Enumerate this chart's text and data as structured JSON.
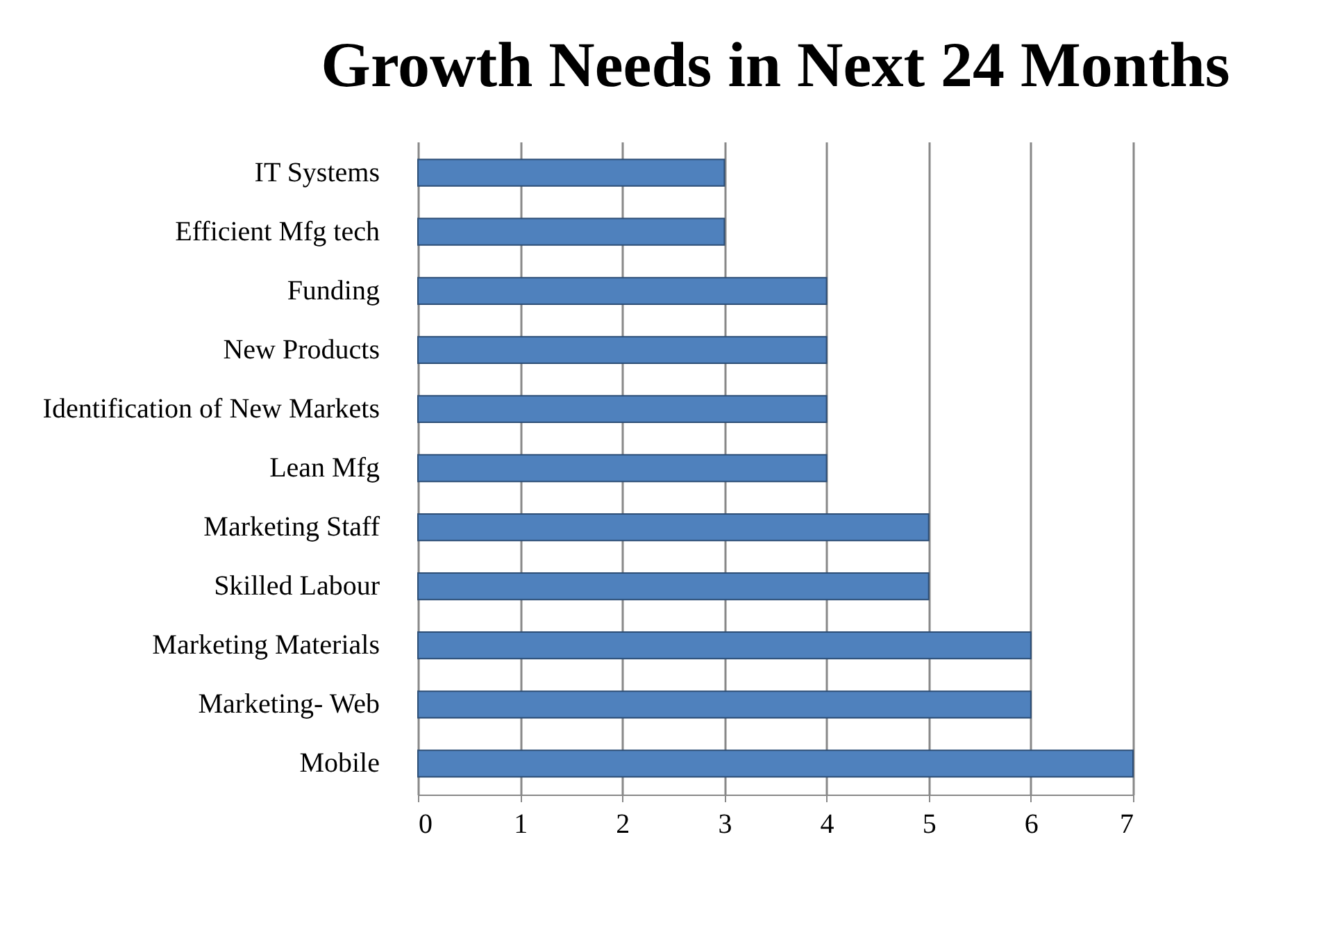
{
  "chart_data": {
    "type": "bar",
    "orientation": "horizontal",
    "title": "Growth  Needs in Next 24 Months",
    "categories": [
      "IT Systems",
      "Efficient Mfg tech",
      "Funding",
      "New Products",
      "Identification of New Markets",
      "Lean Mfg",
      "Marketing Staff",
      "Skilled Labour",
      "Marketing Materials",
      "Marketing- Web",
      "Mobile"
    ],
    "values": [
      3,
      3,
      4,
      4,
      4,
      4,
      5,
      5,
      6,
      6,
      7
    ],
    "color": "#4f81bd",
    "xlim": [
      0,
      7
    ],
    "xticks": [
      0,
      1,
      2,
      3,
      4,
      5,
      6,
      7
    ],
    "grid": "x"
  }
}
